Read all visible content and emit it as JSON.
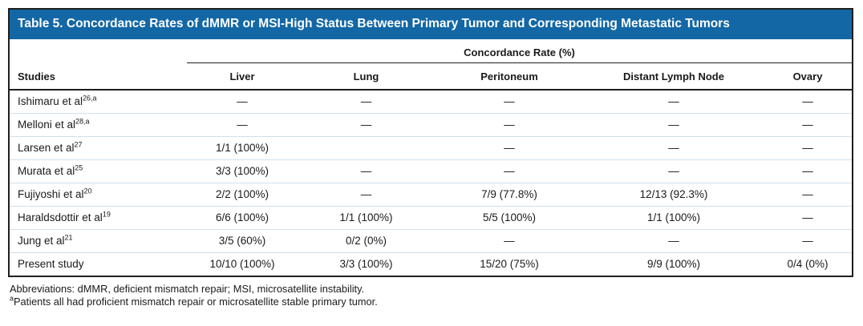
{
  "colors": {
    "header_blue": "#1367a5",
    "row_divider": "#cfe0ef",
    "border_dark": "#1f1f1f",
    "text": "#1a1a1a"
  },
  "table": {
    "title": "Table 5. Concordance Rates of dMMR or MSI-High Status Between Primary Tumor and Corresponding Metastatic Tumors",
    "columns": {
      "studies_label": "Studies",
      "group_label": "Concordance Rate (%)",
      "sites": [
        "Liver",
        "Lung",
        "Peritoneum",
        "Distant Lymph Node",
        "Ovary"
      ]
    },
    "rows": [
      {
        "study": "Ishimaru et al",
        "sup": "26,a",
        "values": [
          "—",
          "—",
          "—",
          "—",
          "—"
        ]
      },
      {
        "study": "Melloni et al",
        "sup": "28,a",
        "values": [
          "—",
          "—",
          "—",
          "—",
          "—"
        ]
      },
      {
        "study": "Larsen et al",
        "sup": "27",
        "values": [
          "1/1 (100%)",
          "",
          "—",
          "—",
          "—"
        ]
      },
      {
        "study": "Murata et al",
        "sup": "25",
        "values": [
          "3/3 (100%)",
          "—",
          "—",
          "—",
          "—"
        ]
      },
      {
        "study": "Fujiyoshi et al",
        "sup": "20",
        "values": [
          "2/2 (100%)",
          "—",
          "7/9 (77.8%)",
          "12/13 (92.3%)",
          "—"
        ]
      },
      {
        "study": "Haraldsdottir et al",
        "sup": "19",
        "values": [
          "6/6 (100%)",
          "1/1 (100%)",
          "5/5 (100%)",
          "1/1 (100%)",
          "—"
        ]
      },
      {
        "study": "Jung et al",
        "sup": "21",
        "values": [
          "3/5 (60%)",
          "0/2 (0%)",
          "—",
          "—",
          "—"
        ]
      },
      {
        "study": "Present study",
        "sup": "",
        "values": [
          "10/10 (100%)",
          "3/3 (100%)",
          "15/20 (75%)",
          "9/9 (100%)",
          "0/4 (0%)"
        ]
      }
    ]
  },
  "footnotes": [
    {
      "sup": "",
      "text": "Abbreviations: dMMR, deficient mismatch repair; MSI, microsatellite instability."
    },
    {
      "sup": "a",
      "text": "Patients all had proficient mismatch repair or microsatellite stable primary tumor."
    }
  ]
}
